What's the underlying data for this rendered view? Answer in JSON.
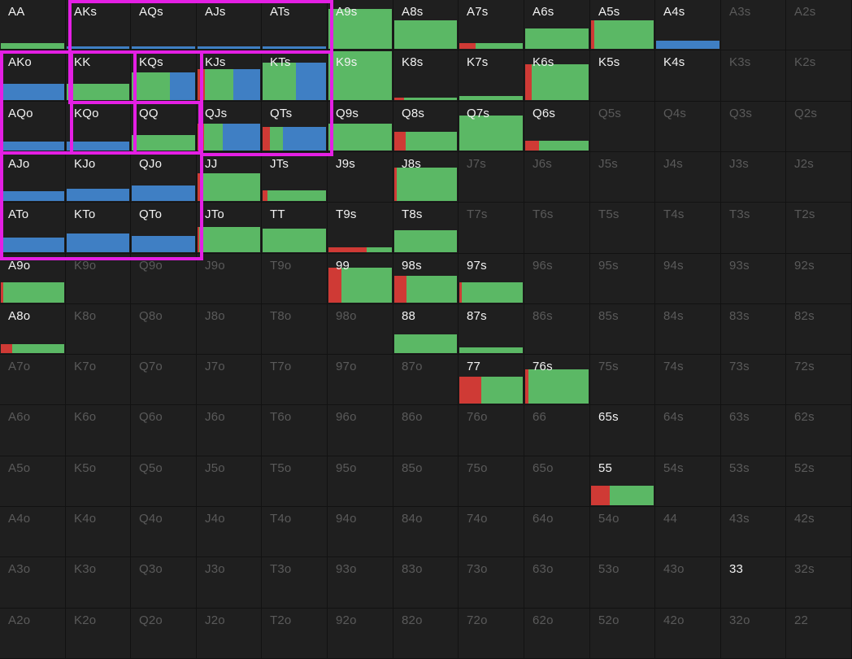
{
  "colors": {
    "raise": "#cf3a35",
    "call": "#5bb865",
    "fold_mix": "#3f7fc4",
    "highlight": "#e41fe4",
    "active_text": "#f2f2f2",
    "inactive_text": "#5a5a5a"
  },
  "grid": {
    "rows": [
      [
        "AA",
        "AKs",
        "AQs",
        "AJs",
        "ATs",
        "A9s",
        "A8s",
        "A7s",
        "A6s",
        "A5s",
        "A4s",
        "A3s",
        "A2s"
      ],
      [
        "AKo",
        "KK",
        "KQs",
        "KJs",
        "KTs",
        "K9s",
        "K8s",
        "K7s",
        "K6s",
        "K5s",
        "K4s",
        "K3s",
        "K2s"
      ],
      [
        "AQo",
        "KQo",
        "QQ",
        "QJs",
        "QTs",
        "Q9s",
        "Q8s",
        "Q7s",
        "Q6s",
        "Q5s",
        "Q4s",
        "Q3s",
        "Q2s"
      ],
      [
        "AJo",
        "KJo",
        "QJo",
        "JJ",
        "JTs",
        "J9s",
        "J8s",
        "J7s",
        "J6s",
        "J5s",
        "J4s",
        "J3s",
        "J2s"
      ],
      [
        "ATo",
        "KTo",
        "QTo",
        "JTo",
        "TT",
        "T9s",
        "T8s",
        "T7s",
        "T6s",
        "T5s",
        "T4s",
        "T3s",
        "T2s"
      ],
      [
        "A9o",
        "K9o",
        "Q9o",
        "J9o",
        "T9o",
        "99",
        "98s",
        "97s",
        "96s",
        "95s",
        "94s",
        "93s",
        "92s"
      ],
      [
        "A8o",
        "K8o",
        "Q8o",
        "J8o",
        "T8o",
        "98o",
        "88",
        "87s",
        "86s",
        "85s",
        "84s",
        "83s",
        "82s"
      ],
      [
        "A7o",
        "K7o",
        "Q7o",
        "J7o",
        "T7o",
        "97o",
        "87o",
        "77",
        "76s",
        "75s",
        "74s",
        "73s",
        "72s"
      ],
      [
        "A6o",
        "K6o",
        "Q6o",
        "J6o",
        "T6o",
        "96o",
        "86o",
        "76o",
        "66",
        "65s",
        "64s",
        "63s",
        "62s"
      ],
      [
        "A5o",
        "K5o",
        "Q5o",
        "J5o",
        "T5o",
        "95o",
        "85o",
        "75o",
        "65o",
        "55",
        "54s",
        "53s",
        "52s"
      ],
      [
        "A4o",
        "K4o",
        "Q4o",
        "J4o",
        "T4o",
        "94o",
        "84o",
        "74o",
        "64o",
        "54o",
        "44",
        "43s",
        "42s"
      ],
      [
        "A3o",
        "K3o",
        "Q3o",
        "J3o",
        "T3o",
        "93o",
        "83o",
        "73o",
        "63o",
        "53o",
        "43o",
        "33",
        "32s"
      ],
      [
        "A2o",
        "K2o",
        "Q2o",
        "J2o",
        "T2o",
        "92o",
        "82o",
        "72o",
        "62o",
        "52o",
        "42o",
        "32o",
        "22"
      ]
    ],
    "hands": {
      "AA": {
        "h": 0.12,
        "segs": [
          [
            "call",
            1
          ]
        ]
      },
      "AKs": {
        "h": 0.05,
        "segs": [
          [
            "fold_mix",
            1
          ]
        ]
      },
      "AQs": {
        "h": 0.05,
        "segs": [
          [
            "fold_mix",
            1
          ]
        ]
      },
      "AJs": {
        "h": 0.05,
        "segs": [
          [
            "fold_mix",
            1
          ]
        ]
      },
      "ATs": {
        "h": 0.05,
        "segs": [
          [
            "fold_mix",
            1
          ]
        ]
      },
      "A9s": {
        "h": 0.82,
        "segs": [
          [
            "call",
            1
          ]
        ]
      },
      "A8s": {
        "h": 0.58,
        "segs": [
          [
            "call",
            1
          ]
        ]
      },
      "A7s": {
        "h": 0.12,
        "segs": [
          [
            "raise",
            0.25
          ],
          [
            "call",
            0.75
          ]
        ]
      },
      "A6s": {
        "h": 0.42,
        "segs": [
          [
            "call",
            1
          ]
        ]
      },
      "A5s": {
        "h": 0.58,
        "segs": [
          [
            "raise",
            0.05
          ],
          [
            "call",
            0.95
          ]
        ]
      },
      "A4s": {
        "h": 0.17,
        "segs": [
          [
            "fold_mix",
            1
          ]
        ]
      },
      "AKo": {
        "h": 0.32,
        "segs": [
          [
            "fold_mix",
            1
          ]
        ]
      },
      "KK": {
        "h": 0.32,
        "segs": [
          [
            "call",
            1
          ]
        ]
      },
      "KQs": {
        "h": 0.55,
        "segs": [
          [
            "call",
            0.6
          ],
          [
            "fold_mix",
            0.4
          ]
        ]
      },
      "KJs": {
        "h": 0.62,
        "segs": [
          [
            "raise",
            0.12
          ],
          [
            "call",
            0.45
          ],
          [
            "fold_mix",
            0.43
          ]
        ]
      },
      "KTs": {
        "h": 0.75,
        "segs": [
          [
            "call",
            0.52
          ],
          [
            "fold_mix",
            0.48
          ]
        ]
      },
      "K9s": {
        "h": 0.98,
        "segs": [
          [
            "call",
            1
          ]
        ]
      },
      "K8s": {
        "h": 0.05,
        "segs": [
          [
            "raise",
            0.15
          ],
          [
            "call",
            0.85
          ]
        ]
      },
      "K7s": {
        "h": 0.08,
        "segs": [
          [
            "call",
            1
          ]
        ]
      },
      "K6s": {
        "h": 0.72,
        "segs": [
          [
            "raise",
            0.1
          ],
          [
            "call",
            0.9
          ]
        ]
      },
      "AQo": {
        "h": 0.18,
        "segs": [
          [
            "fold_mix",
            1
          ]
        ]
      },
      "KQo": {
        "h": 0.18,
        "segs": [
          [
            "fold_mix",
            1
          ]
        ]
      },
      "QQ": {
        "h": 0.32,
        "segs": [
          [
            "call",
            1
          ]
        ]
      },
      "QJs": {
        "h": 0.55,
        "segs": [
          [
            "raise",
            0.1
          ],
          [
            "call",
            0.3
          ],
          [
            "fold_mix",
            0.6
          ]
        ]
      },
      "QTs": {
        "h": 0.48,
        "segs": [
          [
            "raise",
            0.12
          ],
          [
            "call",
            0.2
          ],
          [
            "fold_mix",
            0.68
          ]
        ]
      },
      "Q9s": {
        "h": 0.55,
        "segs": [
          [
            "call",
            1
          ]
        ]
      },
      "Q8s": {
        "h": 0.38,
        "segs": [
          [
            "raise",
            0.18
          ],
          [
            "call",
            0.82
          ]
        ]
      },
      "Q7s": {
        "h": 0.72,
        "segs": [
          [
            "call",
            1
          ]
        ]
      },
      "Q6s": {
        "h": 0.2,
        "segs": [
          [
            "raise",
            0.22
          ],
          [
            "call",
            0.78
          ]
        ]
      },
      "AJo": {
        "h": 0.2,
        "segs": [
          [
            "fold_mix",
            1
          ]
        ]
      },
      "KJo": {
        "h": 0.25,
        "segs": [
          [
            "fold_mix",
            1
          ]
        ]
      },
      "QJo": {
        "h": 0.32,
        "segs": [
          [
            "fold_mix",
            1
          ]
        ]
      },
      "JJ": {
        "h": 0.57,
        "segs": [
          [
            "raise",
            0.08
          ],
          [
            "call",
            0.92
          ]
        ]
      },
      "JTs": {
        "h": 0.22,
        "segs": [
          [
            "raise",
            0.08
          ],
          [
            "call",
            0.92
          ]
        ]
      },
      "J8s": {
        "h": 0.68,
        "segs": [
          [
            "raise",
            0.04
          ],
          [
            "call",
            0.96
          ]
        ]
      },
      "ATo": {
        "h": 0.3,
        "segs": [
          [
            "fold_mix",
            1
          ]
        ]
      },
      "KTo": {
        "h": 0.38,
        "segs": [
          [
            "fold_mix",
            1
          ]
        ]
      },
      "QTo": {
        "h": 0.32,
        "segs": [
          [
            "fold_mix",
            1
          ]
        ]
      },
      "JTo": {
        "h": 0.5,
        "segs": [
          [
            "raise",
            0.03
          ],
          [
            "call",
            0.97
          ]
        ]
      },
      "TT": {
        "h": 0.48,
        "segs": [
          [
            "call",
            1
          ]
        ]
      },
      "T9s": {
        "h": 0.1,
        "segs": [
          [
            "raise",
            0.6
          ],
          [
            "call",
            0.4
          ]
        ]
      },
      "T8s": {
        "h": 0.45,
        "segs": [
          [
            "call",
            1
          ]
        ]
      },
      "A9o": {
        "h": 0.42,
        "segs": [
          [
            "raise",
            0.04
          ],
          [
            "call",
            0.96
          ]
        ]
      },
      "99": {
        "h": 0.72,
        "segs": [
          [
            "raise",
            0.2
          ],
          [
            "call",
            0.8
          ]
        ]
      },
      "98s": {
        "h": 0.55,
        "segs": [
          [
            "raise",
            0.2
          ],
          [
            "call",
            0.8
          ]
        ]
      },
      "97s": {
        "h": 0.42,
        "segs": [
          [
            "raise",
            0.04
          ],
          [
            "call",
            0.96
          ]
        ]
      },
      "A8o": {
        "h": 0.18,
        "segs": [
          [
            "raise",
            0.18
          ],
          [
            "call",
            0.82
          ]
        ]
      },
      "88": {
        "h": 0.38,
        "segs": [
          [
            "call",
            1
          ]
        ]
      },
      "87s": {
        "h": 0.12,
        "segs": [
          [
            "call",
            1
          ]
        ]
      },
      "77": {
        "h": 0.55,
        "segs": [
          [
            "raise",
            0.35
          ],
          [
            "call",
            0.65
          ]
        ]
      },
      "76s": {
        "h": 0.7,
        "segs": [
          [
            "raise",
            0.05
          ],
          [
            "call",
            0.95
          ]
        ]
      },
      "55": {
        "h": 0.4,
        "segs": [
          [
            "raise",
            0.3
          ],
          [
            "call",
            0.7
          ]
        ]
      }
    },
    "active_labels": [
      "AA",
      "AKs",
      "AQs",
      "AJs",
      "ATs",
      "A9s",
      "A8s",
      "A7s",
      "A6s",
      "A5s",
      "A4s",
      "AKo",
      "KK",
      "KQs",
      "KJs",
      "KTs",
      "K9s",
      "K8s",
      "K7s",
      "K6s",
      "K5s",
      "K4s",
      "AQo",
      "KQo",
      "QQ",
      "QJs",
      "QTs",
      "Q9s",
      "Q8s",
      "Q7s",
      "Q6s",
      "AJo",
      "KJo",
      "QJo",
      "JJ",
      "JTs",
      "J9s",
      "J8s",
      "ATo",
      "KTo",
      "QTo",
      "JTo",
      "TT",
      "T9s",
      "T8s",
      "A9o",
      "99",
      "98s",
      "97s",
      "A8o",
      "88",
      "87s",
      "77",
      "76s",
      "65s",
      "55",
      "33"
    ]
  }
}
